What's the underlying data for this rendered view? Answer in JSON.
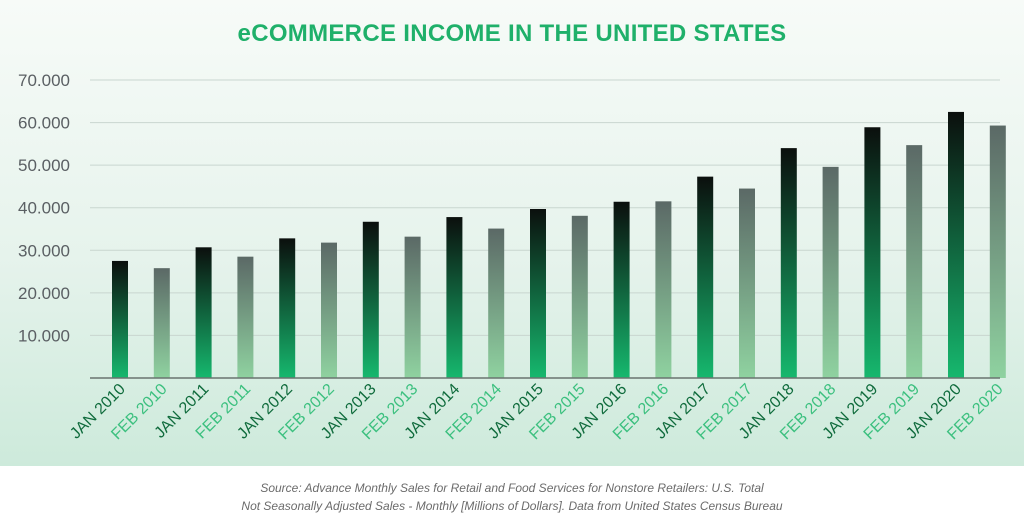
{
  "colors": {
    "title": "#1fb06a",
    "tick_text": "#5a5f63",
    "jan_label": "#0f6b3c",
    "feb_label": "#3cc07f",
    "baseline": "#6a7470",
    "grid": "#c9d6cf",
    "jan_bar_top": "#0b0f0d",
    "jan_bar_bottom": "#16b86e",
    "feb_bar_top": "#5b6966",
    "feb_bar_bottom": "#8fd2a0"
  },
  "chart_data": {
    "type": "bar",
    "title": "eCOMMERCE INCOME IN THE UNITED STATES",
    "xlabel": "",
    "ylabel": "",
    "ylim": [
      0,
      70000
    ],
    "yticks": [
      10000,
      20000,
      30000,
      40000,
      50000,
      60000,
      70000
    ],
    "ytick_labels": [
      "10.000",
      "20.000",
      "30.000",
      "40.000",
      "50.000",
      "60.000",
      "70.000"
    ],
    "grid": true,
    "categories": [
      "JAN 2010",
      "FEB 2010",
      "JAN 2011",
      "FEB 2011",
      "JAN 2012",
      "FEB 2012",
      "JAN 2013",
      "FEB 2013",
      "JAN 2014",
      "FEB 2014",
      "JAN 2015",
      "FEB 2015",
      "JAN 2016",
      "FEB 2016",
      "JAN 2017",
      "FEB 2017",
      "JAN 2018",
      "FEB 2018",
      "JAN 2019",
      "FEB 2019",
      "JAN 2020",
      "FEB 2020"
    ],
    "values": [
      27500,
      25800,
      30700,
      28500,
      32800,
      31800,
      36700,
      33200,
      37800,
      35100,
      39700,
      38100,
      41400,
      41500,
      47300,
      44500,
      54000,
      49600,
      58900,
      54700,
      62500,
      59300
    ]
  },
  "source": {
    "line1": "Source: Advance Monthly Sales for Retail and Food Services for Nonstore Retailers: U.S. Total",
    "line2": "Not Seasonally Adjusted Sales - Monthly [Millions of Dollars]. Data from United States Census Bureau"
  }
}
